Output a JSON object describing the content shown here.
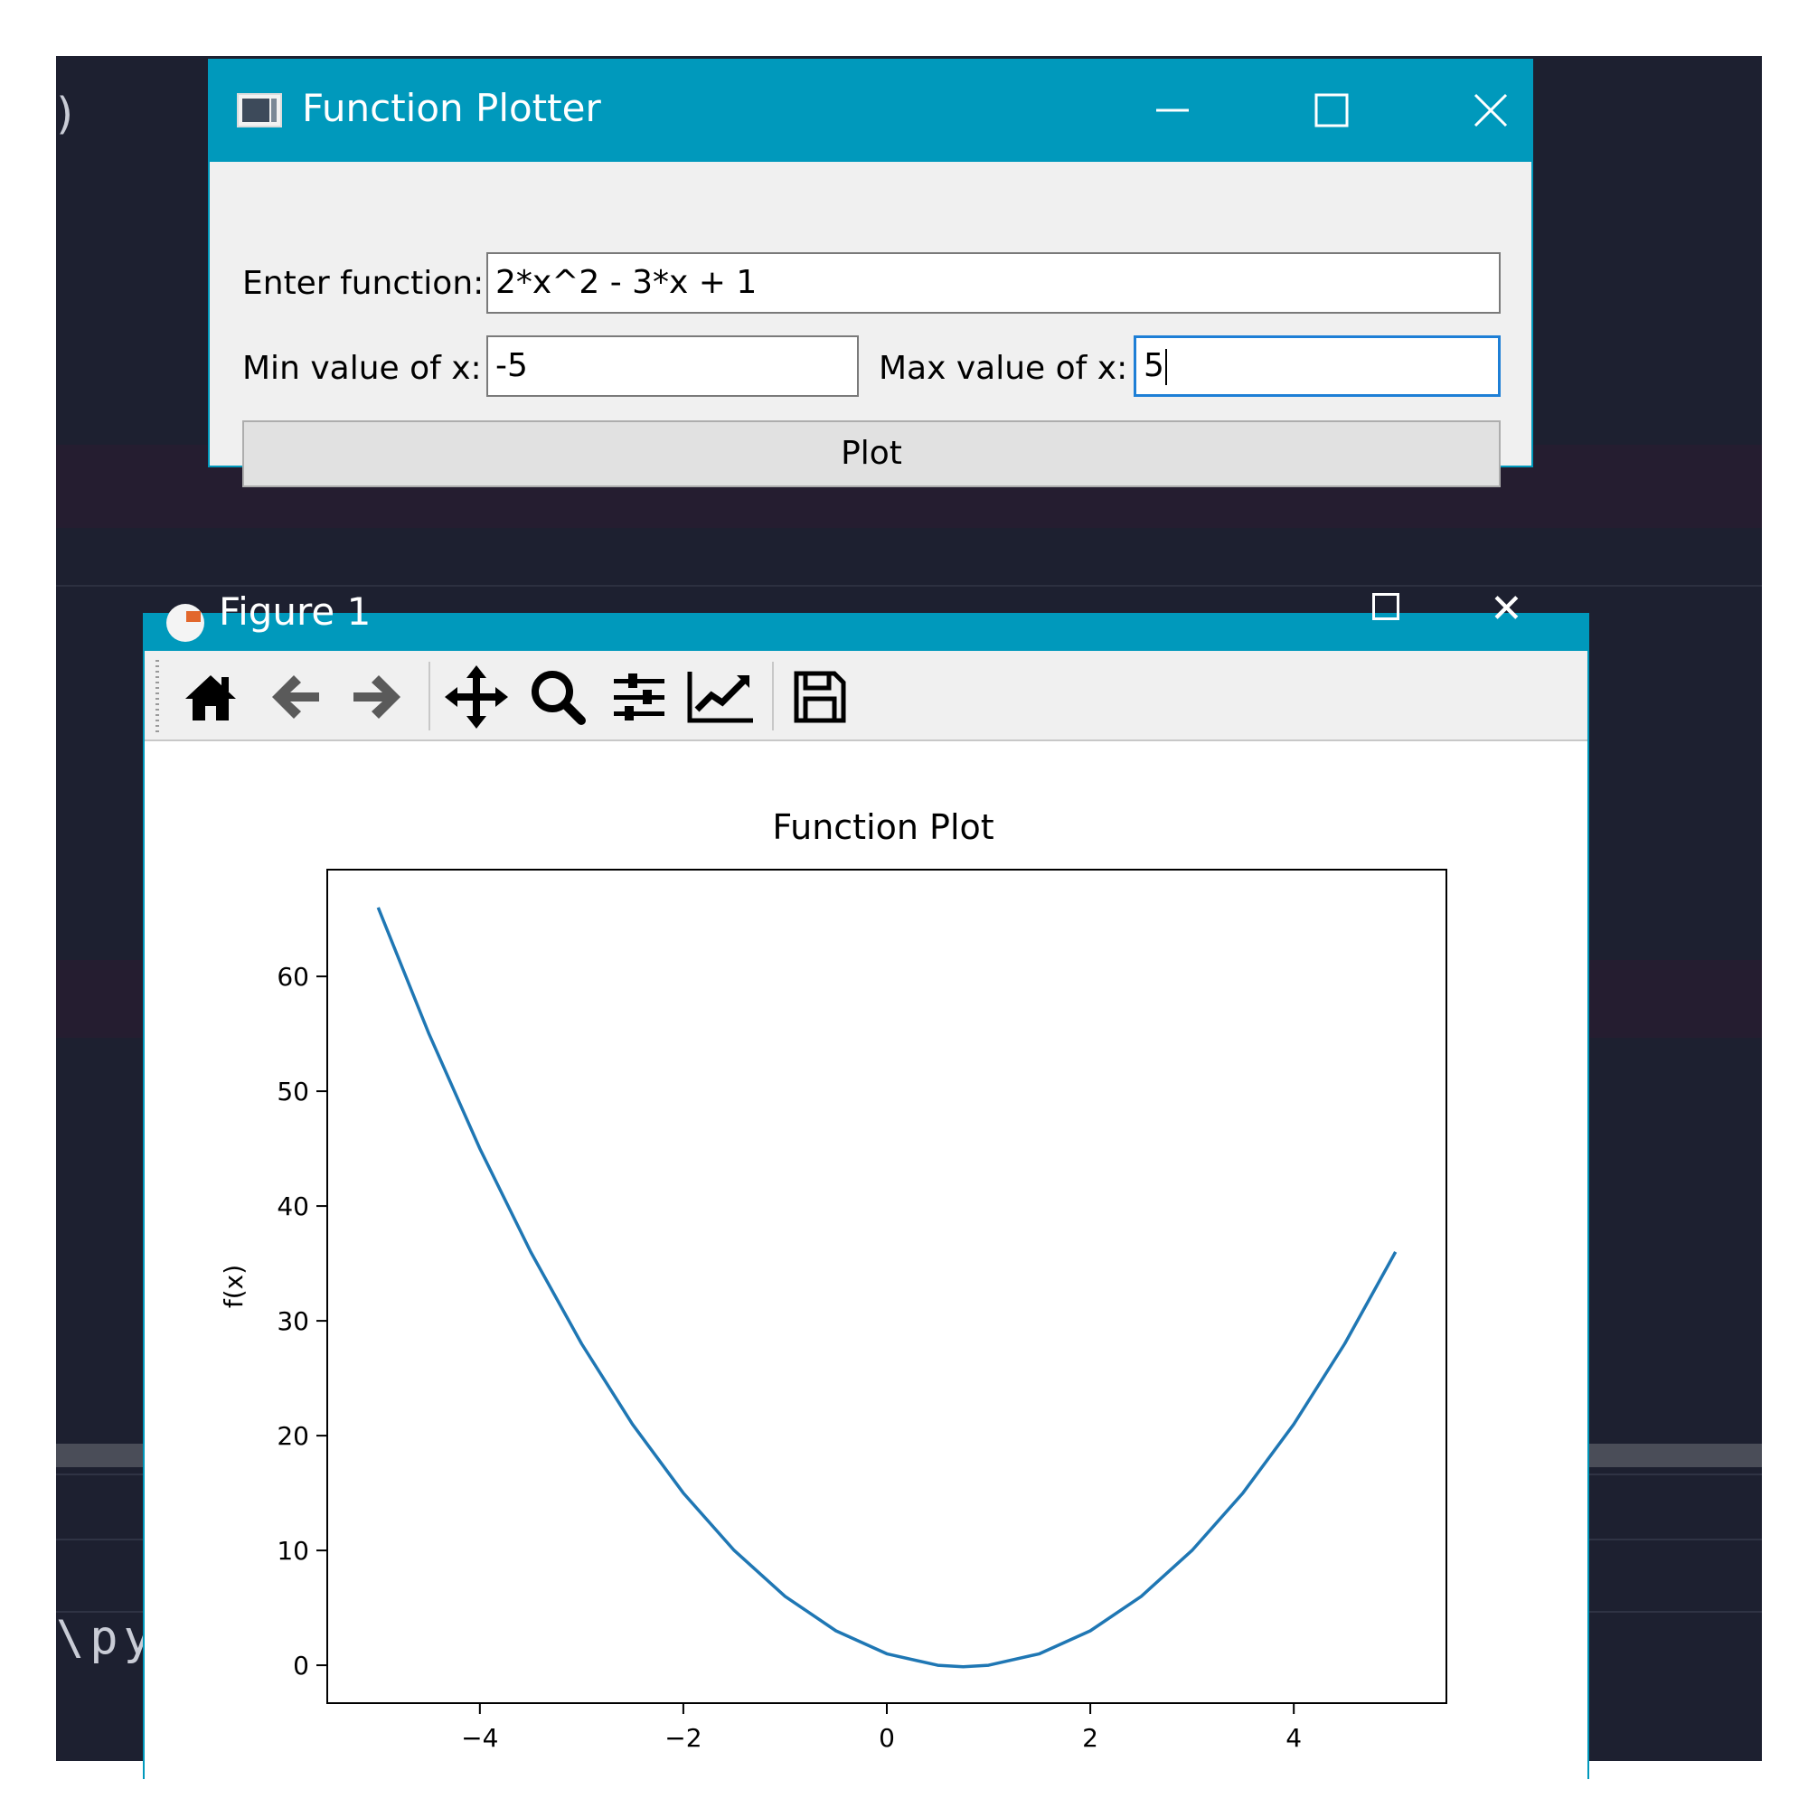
{
  "background": {
    "paren": ")",
    "path_fragment": "\\py"
  },
  "function_plotter": {
    "title": "Function Plotter",
    "function_label": "Enter function:",
    "function_value": "2*x^2 - 3*x + 1",
    "min_label": "Min value of x:",
    "min_value": "-5",
    "max_label": "Max value of x:",
    "max_value": "5",
    "plot_button": "Plot"
  },
  "figure_window": {
    "title": "Figure 1",
    "toolbar_icons": [
      "home-icon",
      "back-icon",
      "forward-icon",
      "pan-icon",
      "zoom-icon",
      "configure-subplots-icon",
      "edit-axis-icon",
      "save-icon"
    ]
  },
  "colors": {
    "titlebar": "#0099bc",
    "editor_bg": "#1d2030",
    "line": "#1f77b4"
  },
  "chart_data": {
    "type": "line",
    "title": "Function Plot",
    "xlabel": "",
    "ylabel": "f(x)",
    "xlim": [
      -5.5,
      5.5
    ],
    "ylim": [
      -3.3,
      69.3
    ],
    "xticks": [
      -4,
      -2,
      0,
      2,
      4
    ],
    "xtick_labels": [
      "−4",
      "−2",
      "0",
      "2",
      "4"
    ],
    "yticks": [
      0,
      10,
      20,
      30,
      40,
      50,
      60
    ],
    "ytick_labels": [
      "0",
      "10",
      "20",
      "30",
      "40",
      "50",
      "60"
    ],
    "grid": false,
    "series": [
      {
        "x": [
          -5,
          -4.5,
          -4,
          -3.5,
          -3,
          -2.5,
          -2,
          -1.5,
          -1,
          -0.5,
          0,
          0.5,
          0.75,
          1,
          1.5,
          2,
          2.5,
          3,
          3.5,
          4,
          4.5,
          5
        ],
        "values": [
          66,
          55,
          45,
          36,
          28,
          21,
          15,
          10,
          6,
          3,
          1,
          0,
          -0.125,
          0,
          1,
          3,
          6,
          10,
          15,
          21,
          28,
          36
        ]
      }
    ]
  }
}
